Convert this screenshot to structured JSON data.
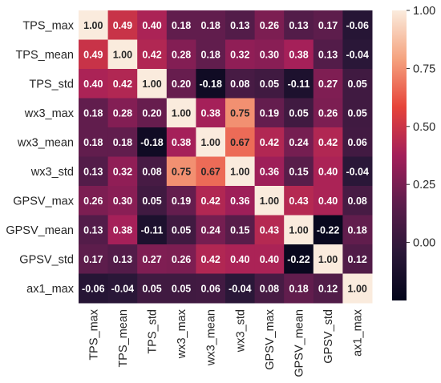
{
  "chart_data": {
    "type": "heatmap",
    "title": "",
    "labels": [
      "TPS_max",
      "TPS_mean",
      "TPS_std",
      "wx3_max",
      "wx3_mean",
      "wx3_std",
      "GPSV_max",
      "GPSV_mean",
      "GPSV_std",
      "ax1_max"
    ],
    "matrix": [
      [
        1.0,
        0.49,
        0.4,
        0.18,
        0.18,
        0.13,
        0.26,
        0.13,
        0.17,
        -0.06
      ],
      [
        0.49,
        1.0,
        0.42,
        0.28,
        0.18,
        0.32,
        0.3,
        0.38,
        0.13,
        -0.04
      ],
      [
        0.4,
        0.42,
        1.0,
        0.2,
        -0.18,
        0.08,
        0.05,
        -0.11,
        0.27,
        0.05
      ],
      [
        0.18,
        0.28,
        0.2,
        1.0,
        0.38,
        0.75,
        0.19,
        0.05,
        0.26,
        0.05
      ],
      [
        0.18,
        0.18,
        -0.18,
        0.38,
        1.0,
        0.67,
        0.42,
        0.24,
        0.42,
        0.06
      ],
      [
        0.13,
        0.32,
        0.08,
        0.75,
        0.67,
        1.0,
        0.36,
        0.15,
        0.4,
        -0.04
      ],
      [
        0.26,
        0.3,
        0.05,
        0.19,
        0.42,
        0.36,
        1.0,
        0.43,
        0.4,
        0.08
      ],
      [
        0.13,
        0.38,
        -0.11,
        0.05,
        0.24,
        0.15,
        0.43,
        1.0,
        -0.22,
        0.18
      ],
      [
        0.17,
        0.13,
        0.27,
        0.26,
        0.42,
        0.4,
        0.4,
        -0.22,
        1.0,
        0.12
      ],
      [
        -0.06,
        -0.04,
        0.05,
        0.05,
        0.06,
        -0.04,
        0.08,
        0.18,
        0.12,
        1.0
      ]
    ],
    "colorbar": {
      "vmin": -0.25,
      "vmax": 1.0,
      "ticks": [
        "1.00",
        "0.75",
        "0.50",
        "0.25",
        "0.00"
      ],
      "tick_values": [
        1.0,
        0.75,
        0.5,
        0.25,
        0.0
      ],
      "colormap": "rocket"
    }
  }
}
